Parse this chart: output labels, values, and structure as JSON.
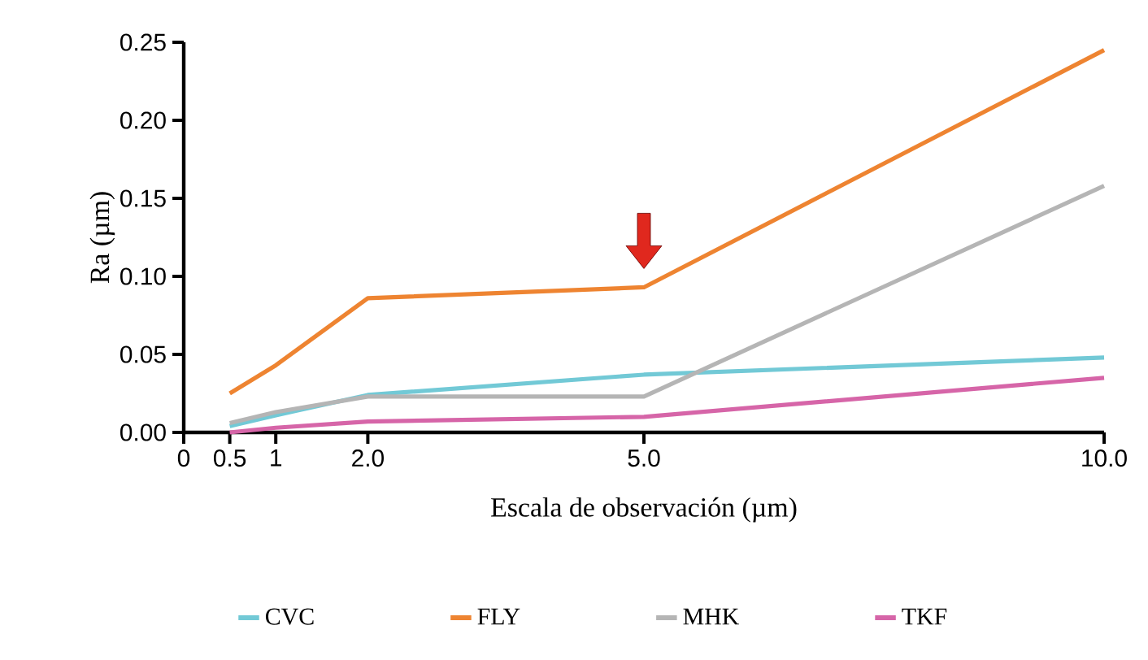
{
  "chart_data": {
    "type": "line",
    "xlabel": "Escala de observación (µm)",
    "ylabel": "Ra (µm)",
    "x": [
      0.5,
      1,
      2,
      5,
      10
    ],
    "series": [
      {
        "name": "CVC",
        "color": "#72c9d6",
        "values": [
          0.004,
          0.011,
          0.024,
          0.037,
          0.048
        ]
      },
      {
        "name": "FLY",
        "color": "#ee8431",
        "values": [
          0.025,
          0.043,
          0.086,
          0.093,
          0.245
        ]
      },
      {
        "name": "MHK",
        "color": "#b5b5b5",
        "values": [
          0.006,
          0.013,
          0.023,
          0.023,
          0.158
        ]
      },
      {
        "name": "TKF",
        "color": "#d665a8",
        "values": [
          0.0,
          0.003,
          0.007,
          0.01,
          0.035
        ]
      }
    ],
    "xlim": [
      0,
      10
    ],
    "ylim": [
      0,
      0.25
    ],
    "xticks": [
      0,
      0.5,
      1,
      {
        "value": 2,
        "label": "2.0"
      },
      {
        "value": 5,
        "label": "5.0"
      },
      {
        "value": 10,
        "label": "10.0"
      }
    ],
    "yticks": [
      {
        "value": 0,
        "label": "0.00"
      },
      {
        "value": 0.05,
        "label": "0.05"
      },
      {
        "value": 0.1,
        "label": "0.10"
      },
      {
        "value": 0.15,
        "label": "0.15"
      },
      {
        "value": 0.2,
        "label": "0.20"
      },
      {
        "value": 0.25,
        "label": "0.25"
      }
    ],
    "legend": "bottom",
    "grid": false,
    "marker": "none",
    "line_style": "solid"
  }
}
